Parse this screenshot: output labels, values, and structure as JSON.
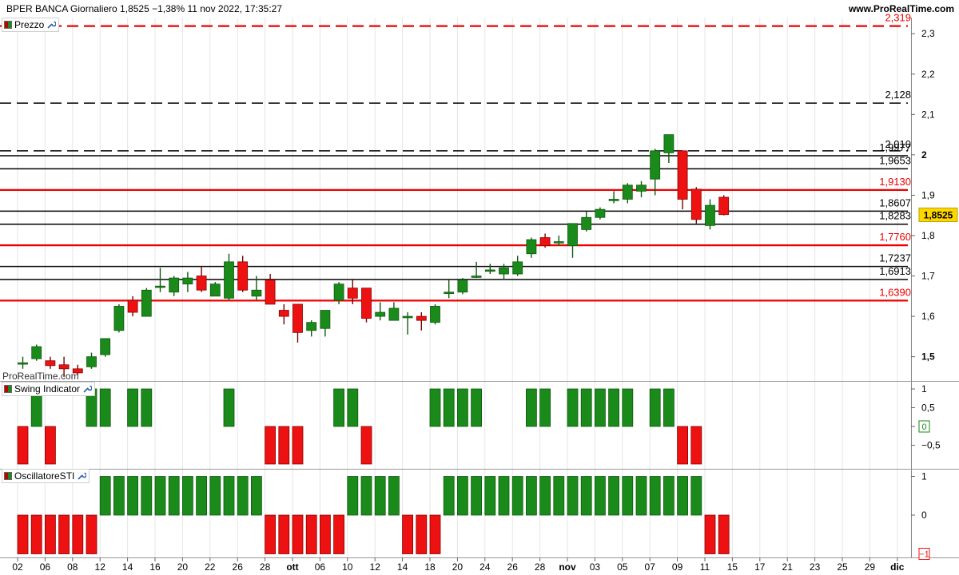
{
  "header": {
    "title": "BPER BANCA Giornaliero 1,8525 −1,38% 11 nov 2022, 17:35:27",
    "website": "www.ProRealTime.com"
  },
  "watermark": "ProRealTime.com",
  "panels": [
    {
      "label": "Prezzo",
      "icon": "wrench-icon"
    },
    {
      "label": "Swing Indicator",
      "icon": "wrench-icon"
    },
    {
      "label": "OscillatoreSTI",
      "icon": "wrench-icon"
    }
  ],
  "colors": {
    "up": "#1a8a1a",
    "down": "#ee1111",
    "red_line": "#ee0000",
    "black_line": "#000000",
    "last_price_bg": "#ffd700"
  },
  "chart_data": [
    {
      "type": "candlestick",
      "title": "Prezzo",
      "ylim": [
        1.44,
        2.34
      ],
      "y_ticks": [
        "1,5",
        "1,6",
        "1,7",
        "1,8",
        "1,9",
        "2",
        "2,1",
        "2,2",
        "2,3"
      ],
      "x_ticks": [
        "02",
        "06",
        "08",
        "12",
        "14",
        "16",
        "20",
        "22",
        "26",
        "28",
        "ott",
        "06",
        "10",
        "12",
        "14",
        "18",
        "20",
        "24",
        "26",
        "28",
        "nov",
        "03",
        "05",
        "07",
        "09",
        "11",
        "15",
        "17",
        "21",
        "23",
        "25",
        "29",
        "dic"
      ],
      "last_price": "1,8525",
      "levels": [
        {
          "value": 2.319,
          "label": "2,319",
          "style": "dashed",
          "color": "red"
        },
        {
          "value": 2.128,
          "label": "2,128",
          "style": "dashed",
          "color": "black"
        },
        {
          "value": 2.01,
          "label": "2,010",
          "style": "dashed",
          "color": "black"
        },
        {
          "value": 1.9977,
          "label": "1,9977",
          "style": "solid",
          "color": "black"
        },
        {
          "value": 1.9653,
          "label": "1,9653",
          "style": "solid",
          "color": "black"
        },
        {
          "value": 1.913,
          "label": "1,9130",
          "style": "solid",
          "color": "red"
        },
        {
          "value": 1.8607,
          "label": "1,8607",
          "style": "solid",
          "color": "black"
        },
        {
          "value": 1.8283,
          "label": "1,8283",
          "style": "solid",
          "color": "black"
        },
        {
          "value": 1.776,
          "label": "1,7760",
          "style": "solid",
          "color": "red"
        },
        {
          "value": 1.7237,
          "label": "1,7237",
          "style": "solid",
          "color": "black"
        },
        {
          "value": 1.6913,
          "label": "1,6913",
          "style": "solid",
          "color": "black"
        },
        {
          "value": 1.639,
          "label": "1,6390",
          "style": "solid",
          "color": "red"
        }
      ],
      "candles": [
        {
          "o": 1.485,
          "h": 1.5,
          "l": 1.47,
          "c": 1.485
        },
        {
          "o": 1.495,
          "h": 1.53,
          "l": 1.49,
          "c": 1.525
        },
        {
          "o": 1.49,
          "h": 1.5,
          "l": 1.47,
          "c": 1.478
        },
        {
          "o": 1.48,
          "h": 1.5,
          "l": 1.45,
          "c": 1.47
        },
        {
          "o": 1.47,
          "h": 1.48,
          "l": 1.455,
          "c": 1.46
        },
        {
          "o": 1.475,
          "h": 1.51,
          "l": 1.47,
          "c": 1.5
        },
        {
          "o": 1.505,
          "h": 1.545,
          "l": 1.5,
          "c": 1.545
        },
        {
          "o": 1.565,
          "h": 1.63,
          "l": 1.56,
          "c": 1.625
        },
        {
          "o": 1.64,
          "h": 1.65,
          "l": 1.6,
          "c": 1.61
        },
        {
          "o": 1.6,
          "h": 1.67,
          "l": 1.6,
          "c": 1.665
        },
        {
          "o": 1.675,
          "h": 1.72,
          "l": 1.66,
          "c": 1.675
        },
        {
          "o": 1.66,
          "h": 1.7,
          "l": 1.65,
          "c": 1.695
        },
        {
          "o": 1.68,
          "h": 1.71,
          "l": 1.66,
          "c": 1.695
        },
        {
          "o": 1.7,
          "h": 1.725,
          "l": 1.66,
          "c": 1.665
        },
        {
          "o": 1.65,
          "h": 1.685,
          "l": 1.65,
          "c": 1.68
        },
        {
          "o": 1.645,
          "h": 1.755,
          "l": 1.64,
          "c": 1.735
        },
        {
          "o": 1.735,
          "h": 1.75,
          "l": 1.66,
          "c": 1.665
        },
        {
          "o": 1.65,
          "h": 1.7,
          "l": 1.64,
          "c": 1.665
        },
        {
          "o": 1.69,
          "h": 1.705,
          "l": 1.63,
          "c": 1.63
        },
        {
          "o": 1.615,
          "h": 1.63,
          "l": 1.58,
          "c": 1.6
        },
        {
          "o": 1.63,
          "h": 1.63,
          "l": 1.535,
          "c": 1.56
        },
        {
          "o": 1.565,
          "h": 1.59,
          "l": 1.55,
          "c": 1.585
        },
        {
          "o": 1.57,
          "h": 1.61,
          "l": 1.55,
          "c": 1.615
        },
        {
          "o": 1.64,
          "h": 1.685,
          "l": 1.63,
          "c": 1.68
        },
        {
          "o": 1.67,
          "h": 1.69,
          "l": 1.63,
          "c": 1.645
        },
        {
          "o": 1.67,
          "h": 1.67,
          "l": 1.585,
          "c": 1.595
        },
        {
          "o": 1.6,
          "h": 1.635,
          "l": 1.59,
          "c": 1.61
        },
        {
          "o": 1.59,
          "h": 1.635,
          "l": 1.59,
          "c": 1.62
        },
        {
          "o": 1.6,
          "h": 1.61,
          "l": 1.555,
          "c": 1.6
        },
        {
          "o": 1.6,
          "h": 1.61,
          "l": 1.565,
          "c": 1.59
        },
        {
          "o": 1.585,
          "h": 1.63,
          "l": 1.58,
          "c": 1.625
        },
        {
          "o": 1.66,
          "h": 1.69,
          "l": 1.645,
          "c": 1.66
        },
        {
          "o": 1.66,
          "h": 1.695,
          "l": 1.655,
          "c": 1.69
        },
        {
          "o": 1.7,
          "h": 1.735,
          "l": 1.695,
          "c": 1.7
        },
        {
          "o": 1.715,
          "h": 1.73,
          "l": 1.705,
          "c": 1.715
        },
        {
          "o": 1.705,
          "h": 1.73,
          "l": 1.69,
          "c": 1.72
        },
        {
          "o": 1.705,
          "h": 1.75,
          "l": 1.7,
          "c": 1.735
        },
        {
          "o": 1.755,
          "h": 1.795,
          "l": 1.745,
          "c": 1.79
        },
        {
          "o": 1.795,
          "h": 1.805,
          "l": 1.77,
          "c": 1.775
        },
        {
          "o": 1.785,
          "h": 1.8,
          "l": 1.775,
          "c": 1.785
        },
        {
          "o": 1.775,
          "h": 1.83,
          "l": 1.745,
          "c": 1.83
        },
        {
          "o": 1.815,
          "h": 1.86,
          "l": 1.81,
          "c": 1.845
        },
        {
          "o": 1.845,
          "h": 1.87,
          "l": 1.84,
          "c": 1.865
        },
        {
          "o": 1.89,
          "h": 1.91,
          "l": 1.88,
          "c": 1.89
        },
        {
          "o": 1.89,
          "h": 1.93,
          "l": 1.88,
          "c": 1.925
        },
        {
          "o": 1.91,
          "h": 1.935,
          "l": 1.895,
          "c": 1.925
        },
        {
          "o": 1.94,
          "h": 2.015,
          "l": 1.9,
          "c": 2.01
        },
        {
          "o": 2.005,
          "h": 2.05,
          "l": 1.98,
          "c": 2.05
        },
        {
          "o": 2.01,
          "h": 2.01,
          "l": 1.865,
          "c": 1.89
        },
        {
          "o": 1.915,
          "h": 1.92,
          "l": 1.83,
          "c": 1.84
        },
        {
          "o": 1.825,
          "h": 1.89,
          "l": 1.815,
          "c": 1.875
        },
        {
          "o": 1.895,
          "h": 1.9,
          "l": 1.85,
          "c": 1.852
        }
      ]
    },
    {
      "type": "bar",
      "title": "Swing Indicator",
      "ylim": [
        -1,
        1
      ],
      "y_ticks": [
        "1",
        "0,5",
        "0",
        "−0,5"
      ],
      "last_value": "0",
      "values": [
        -1,
        1,
        -1,
        0,
        0,
        1,
        1,
        0,
        1,
        1,
        0,
        0,
        0,
        0,
        0,
        1,
        0,
        0,
        -1,
        -1,
        -1,
        0,
        0,
        1,
        1,
        -1,
        0,
        0,
        0,
        0,
        1,
        1,
        1,
        1,
        0,
        0,
        0,
        1,
        1,
        0,
        1,
        1,
        1,
        1,
        1,
        0,
        1,
        1,
        -1,
        -1,
        0,
        0
      ]
    },
    {
      "type": "bar",
      "title": "OscillatoreSTI",
      "ylim": [
        -1,
        1
      ],
      "y_ticks": [
        "1",
        "0"
      ],
      "last_value": "−1",
      "values": [
        -1,
        -1,
        -1,
        -1,
        -1,
        -1,
        1,
        1,
        1,
        1,
        1,
        1,
        1,
        1,
        1,
        1,
        1,
        1,
        -1,
        -1,
        -1,
        -1,
        -1,
        -1,
        1,
        1,
        1,
        1,
        -1,
        -1,
        -1,
        1,
        1,
        1,
        1,
        1,
        1,
        1,
        1,
        1,
        1,
        1,
        1,
        1,
        1,
        1,
        1,
        1,
        1,
        1,
        -1,
        -1
      ]
    }
  ]
}
